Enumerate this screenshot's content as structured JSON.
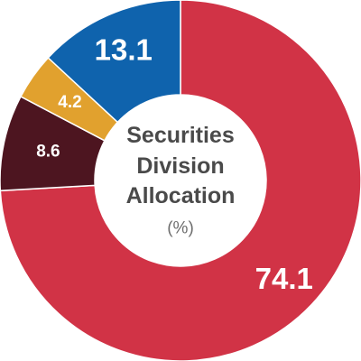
{
  "chart_data": {
    "type": "pie",
    "title_lines": [
      "Securities",
      "Division",
      "Allocation"
    ],
    "unit_label": "(%)",
    "slices": [
      {
        "label": "74.1",
        "value": 74.1,
        "color": "#d13346"
      },
      {
        "label": "8.6",
        "value": 8.6,
        "color": "#4d1520"
      },
      {
        "label": "4.2",
        "value": 4.2,
        "color": "#e1a12e"
      },
      {
        "label": "13.1",
        "value": 13.1,
        "color": "#0f63ad"
      }
    ]
  }
}
